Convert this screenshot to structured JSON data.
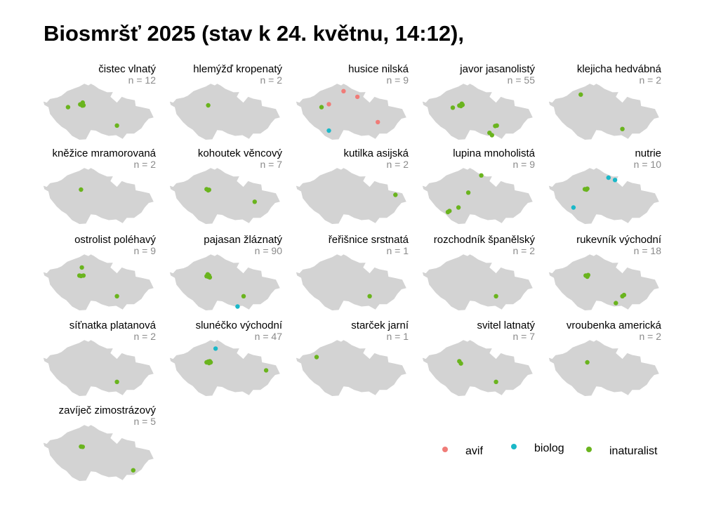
{
  "title": "Biosmršť 2025 (stav k 24. květnu, 14:12),",
  "colors": {
    "map_fill": "#d3d3d3",
    "avif": "#f07c78",
    "biolog": "#1ab8c8",
    "inaturalist": "#6ab41e"
  },
  "legend": [
    {
      "key": "avif",
      "label": "avif"
    },
    {
      "key": "biolog",
      "label": "biolog"
    },
    {
      "key": "inaturalist",
      "label": "inaturalist"
    }
  ],
  "chart_data": {
    "type": "scatter",
    "map": "Czech Republic outline (small multiples)",
    "x_range": [
      12.1,
      18.9
    ],
    "y_range": [
      48.55,
      51.06
    ],
    "panels": [
      {
        "species": "čistec vlnatý",
        "n_label": "n = 12",
        "points": [
          {
            "x": 14.35,
            "y": 50.12,
            "source": "inaturalist"
          },
          {
            "x": 14.48,
            "y": 50.07,
            "source": "inaturalist"
          },
          {
            "x": 14.55,
            "y": 50.08,
            "source": "inaturalist"
          },
          {
            "x": 14.5,
            "y": 50.2,
            "source": "inaturalist"
          },
          {
            "x": 13.6,
            "y": 50.0,
            "source": "inaturalist"
          },
          {
            "x": 16.6,
            "y": 49.2,
            "source": "inaturalist"
          }
        ]
      },
      {
        "species": "hlemýžď kropenatý",
        "n_label": "n = 2",
        "points": [
          {
            "x": 14.45,
            "y": 50.08,
            "source": "inaturalist"
          }
        ]
      },
      {
        "species": "husice nilská",
        "n_label": "n = 9",
        "points": [
          {
            "x": 15.0,
            "y": 50.7,
            "source": "avif"
          },
          {
            "x": 15.85,
            "y": 50.45,
            "source": "avif"
          },
          {
            "x": 14.1,
            "y": 50.13,
            "source": "avif"
          },
          {
            "x": 17.1,
            "y": 49.35,
            "source": "avif"
          },
          {
            "x": 13.65,
            "y": 50.0,
            "source": "inaturalist"
          },
          {
            "x": 14.1,
            "y": 48.98,
            "source": "biolog"
          }
        ]
      },
      {
        "species": "javor jasanolistý",
        "n_label": "n = 55",
        "points": [
          {
            "x": 14.35,
            "y": 50.07,
            "source": "inaturalist"
          },
          {
            "x": 14.45,
            "y": 50.05,
            "source": "inaturalist"
          },
          {
            "x": 14.55,
            "y": 50.1,
            "source": "inaturalist"
          },
          {
            "x": 14.5,
            "y": 50.15,
            "source": "inaturalist"
          },
          {
            "x": 13.95,
            "y": 49.98,
            "source": "inaturalist"
          },
          {
            "x": 16.65,
            "y": 49.2,
            "source": "inaturalist"
          },
          {
            "x": 16.55,
            "y": 49.18,
            "source": "inaturalist"
          },
          {
            "x": 16.2,
            "y": 48.88,
            "source": "inaturalist"
          },
          {
            "x": 16.35,
            "y": 48.78,
            "source": "inaturalist"
          }
        ]
      },
      {
        "species": "klejicha hedvábná",
        "n_label": "n = 2",
        "points": [
          {
            "x": 14.05,
            "y": 50.55,
            "source": "inaturalist"
          },
          {
            "x": 16.6,
            "y": 49.05,
            "source": "inaturalist"
          }
        ]
      },
      {
        "species": "kněžice mramorovaná",
        "n_label": "n = 2",
        "points": [
          {
            "x": 14.4,
            "y": 50.08,
            "source": "inaturalist"
          }
        ]
      },
      {
        "species": "kohoutek věncový",
        "n_label": "n = 7",
        "points": [
          {
            "x": 14.35,
            "y": 50.1,
            "source": "inaturalist"
          },
          {
            "x": 14.45,
            "y": 50.05,
            "source": "inaturalist"
          },
          {
            "x": 14.5,
            "y": 50.07,
            "source": "inaturalist"
          },
          {
            "x": 17.3,
            "y": 49.55,
            "source": "inaturalist"
          }
        ]
      },
      {
        "species": "kutilka asijská",
        "n_label": "n = 2",
        "points": [
          {
            "x": 18.18,
            "y": 49.85,
            "source": "inaturalist"
          }
        ]
      },
      {
        "species": "lupina mnoholistá",
        "n_label": "n = 9",
        "points": [
          {
            "x": 15.7,
            "y": 50.7,
            "source": "inaturalist"
          },
          {
            "x": 14.9,
            "y": 49.95,
            "source": "inaturalist"
          },
          {
            "x": 14.3,
            "y": 49.3,
            "source": "inaturalist"
          },
          {
            "x": 13.75,
            "y": 49.15,
            "source": "inaturalist"
          },
          {
            "x": 13.65,
            "y": 49.1,
            "source": "inaturalist"
          }
        ]
      },
      {
        "species": "nutrie",
        "n_label": "n = 10",
        "points": [
          {
            "x": 15.75,
            "y": 50.6,
            "source": "biolog"
          },
          {
            "x": 16.15,
            "y": 50.5,
            "source": "biolog"
          },
          {
            "x": 13.6,
            "y": 49.3,
            "source": "biolog"
          },
          {
            "x": 14.3,
            "y": 50.1,
            "source": "inaturalist"
          },
          {
            "x": 14.45,
            "y": 50.12,
            "source": "inaturalist"
          },
          {
            "x": 14.4,
            "y": 50.08,
            "source": "inaturalist"
          }
        ]
      },
      {
        "species": "ostrolist poléhavý",
        "n_label": "n = 9",
        "points": [
          {
            "x": 14.45,
            "y": 50.45,
            "source": "inaturalist"
          },
          {
            "x": 14.3,
            "y": 50.1,
            "source": "inaturalist"
          },
          {
            "x": 14.4,
            "y": 50.08,
            "source": "inaturalist"
          },
          {
            "x": 14.55,
            "y": 50.1,
            "source": "inaturalist"
          },
          {
            "x": 16.6,
            "y": 49.2,
            "source": "inaturalist"
          }
        ]
      },
      {
        "species": "pajasan žláznatý",
        "n_label": "n = 90",
        "points": [
          {
            "x": 14.35,
            "y": 50.07,
            "source": "inaturalist"
          },
          {
            "x": 14.45,
            "y": 50.05,
            "source": "inaturalist"
          },
          {
            "x": 14.5,
            "y": 50.1,
            "source": "inaturalist"
          },
          {
            "x": 14.42,
            "y": 50.15,
            "source": "inaturalist"
          },
          {
            "x": 14.55,
            "y": 50.02,
            "source": "inaturalist"
          },
          {
            "x": 16.62,
            "y": 49.2,
            "source": "inaturalist"
          },
          {
            "x": 16.25,
            "y": 48.75,
            "source": "biolog"
          }
        ]
      },
      {
        "species": "řeřišnice srstnatá",
        "n_label": "n = 1",
        "points": [
          {
            "x": 16.6,
            "y": 49.2,
            "source": "inaturalist"
          }
        ]
      },
      {
        "species": "rozchodník španělský",
        "n_label": "n = 2",
        "points": [
          {
            "x": 16.6,
            "y": 49.2,
            "source": "inaturalist"
          }
        ]
      },
      {
        "species": "rukevník východní",
        "n_label": "n = 18",
        "points": [
          {
            "x": 14.35,
            "y": 50.1,
            "source": "inaturalist"
          },
          {
            "x": 14.45,
            "y": 50.05,
            "source": "inaturalist"
          },
          {
            "x": 14.5,
            "y": 50.12,
            "source": "inaturalist"
          },
          {
            "x": 16.6,
            "y": 49.2,
            "source": "inaturalist"
          },
          {
            "x": 16.7,
            "y": 49.25,
            "source": "inaturalist"
          },
          {
            "x": 16.2,
            "y": 48.9,
            "source": "inaturalist"
          }
        ]
      },
      {
        "species": "síťnatka platanová",
        "n_label": "n = 2",
        "points": [
          {
            "x": 16.6,
            "y": 49.2,
            "source": "inaturalist"
          }
        ]
      },
      {
        "species": "slunéčko východní",
        "n_label": "n = 47",
        "points": [
          {
            "x": 14.35,
            "y": 50.05,
            "source": "inaturalist"
          },
          {
            "x": 14.45,
            "y": 50.08,
            "source": "inaturalist"
          },
          {
            "x": 14.5,
            "y": 50.02,
            "source": "inaturalist"
          },
          {
            "x": 14.55,
            "y": 50.1,
            "source": "inaturalist"
          },
          {
            "x": 14.6,
            "y": 50.05,
            "source": "inaturalist"
          },
          {
            "x": 18.0,
            "y": 49.7,
            "source": "inaturalist"
          },
          {
            "x": 14.9,
            "y": 50.65,
            "source": "biolog"
          }
        ]
      },
      {
        "species": "starček jarní",
        "n_label": "n = 1",
        "points": [
          {
            "x": 13.35,
            "y": 50.28,
            "source": "inaturalist"
          }
        ]
      },
      {
        "species": "svitel latnatý",
        "n_label": "n = 7",
        "points": [
          {
            "x": 14.35,
            "y": 50.1,
            "source": "inaturalist"
          },
          {
            "x": 14.45,
            "y": 50.0,
            "source": "inaturalist"
          },
          {
            "x": 16.6,
            "y": 49.2,
            "source": "inaturalist"
          }
        ]
      },
      {
        "species": "vroubenka americká",
        "n_label": "n = 2",
        "points": [
          {
            "x": 14.45,
            "y": 50.05,
            "source": "inaturalist"
          }
        ]
      },
      {
        "species": "zavíječ zimostrázový",
        "n_label": "n = 5",
        "points": [
          {
            "x": 14.4,
            "y": 50.08,
            "source": "inaturalist"
          },
          {
            "x": 14.5,
            "y": 50.07,
            "source": "inaturalist"
          },
          {
            "x": 17.6,
            "y": 49.05,
            "source": "inaturalist"
          }
        ]
      }
    ]
  }
}
